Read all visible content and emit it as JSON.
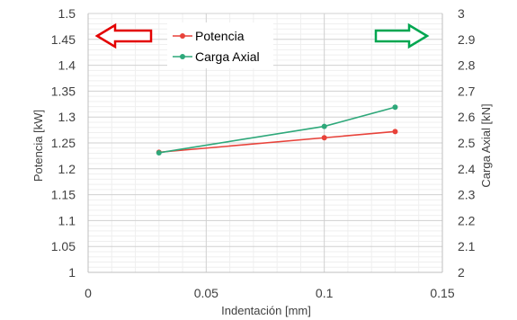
{
  "chart_data": {
    "type": "line",
    "title": "",
    "xlabel": "Indentación [mm]",
    "ylabel_left": "Potencia [kW]",
    "ylabel_right": "Carga Axial [kN]",
    "xlim": [
      0,
      0.15
    ],
    "ylim_left": [
      1,
      1.5
    ],
    "ylim_right": [
      2,
      3
    ],
    "x_ticks": [
      "0",
      "0.05",
      "0.1",
      "0.15"
    ],
    "y_left_ticks": [
      "1",
      "1.05",
      "1.1",
      "1.15",
      "1.2",
      "1.25",
      "1.3",
      "1.35",
      "1.4",
      "1.45",
      "1.5"
    ],
    "y_right_ticks": [
      "2",
      "2.1",
      "2.2",
      "2.3",
      "2.4",
      "2.5",
      "2.6",
      "2.7",
      "2.8",
      "2.9",
      "3"
    ],
    "grid": true,
    "legend_position": "top-center",
    "series": [
      {
        "name": "Potencia",
        "axis": "left",
        "color": "#e8423a",
        "x": [
          0.03,
          0.1,
          0.13
        ],
        "y": [
          1.232,
          1.26,
          1.272
        ]
      },
      {
        "name": "Carga Axial",
        "axis": "right",
        "color": "#2ea87a",
        "x": [
          0.03,
          0.1,
          0.13
        ],
        "y": [
          2.462,
          2.564,
          2.638
        ]
      }
    ],
    "annotations": [
      {
        "shape": "arrow-left",
        "color": "#e30000",
        "meaning": "left-axis"
      },
      {
        "shape": "arrow-right",
        "color": "#00a650",
        "meaning": "right-axis"
      }
    ]
  }
}
